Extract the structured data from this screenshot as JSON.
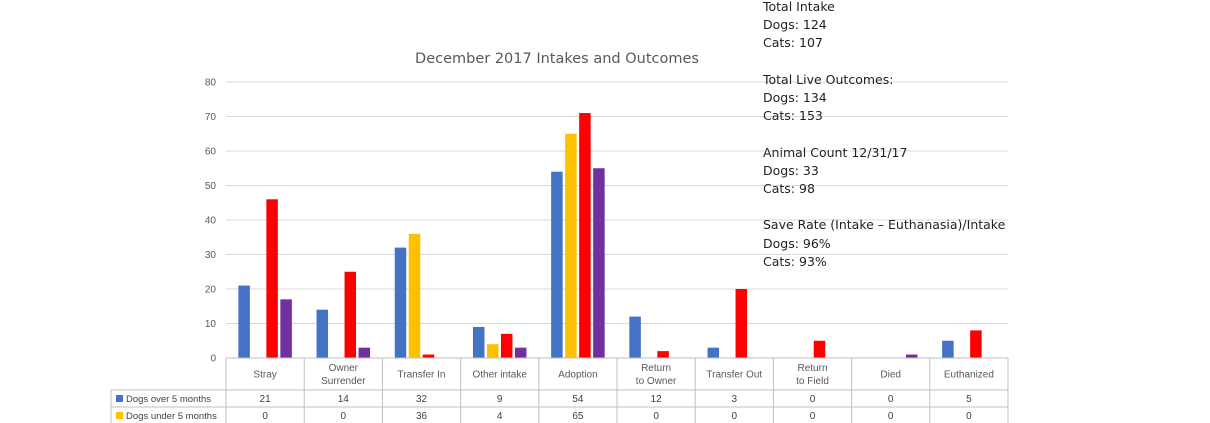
{
  "chart_data": {
    "type": "bar",
    "title": "December 2017 Intakes and Outcomes",
    "categories": [
      "Stray",
      "Owner Surrender",
      "Transfer In",
      "Other intake",
      "Adoption",
      "Return to Owner",
      "Transfer Out",
      "Return to Field",
      "Died",
      "Euthanized"
    ],
    "ylim": [
      0,
      80
    ],
    "yticks": [
      0,
      10,
      20,
      30,
      40,
      50,
      60,
      70,
      80
    ],
    "grid": true,
    "legend": "data-table",
    "series": [
      {
        "name": "Dogs over 5 months",
        "color": "#4472C4",
        "values": [
          21,
          14,
          32,
          9,
          54,
          12,
          3,
          0,
          0,
          5
        ]
      },
      {
        "name": "Dogs under 5 months",
        "color": "#FFC000",
        "values": [
          0,
          0,
          36,
          4,
          65,
          0,
          0,
          0,
          0,
          0
        ]
      },
      {
        "color": "#FF0000",
        "values": [
          46,
          25,
          1,
          7,
          71,
          2,
          20,
          5,
          0,
          8
        ]
      },
      {
        "color": "#7030A0",
        "values": [
          17,
          3,
          0,
          3,
          55,
          0,
          0,
          0,
          1,
          0
        ]
      }
    ],
    "table_rows": [
      {
        "name": "Dogs over 5 months",
        "color": "#4472C4",
        "cells": [
          "21",
          "14",
          "32",
          "9",
          "54",
          "12",
          "3",
          "0",
          "0",
          "5"
        ]
      },
      {
        "name": "Dogs under 5 months",
        "color": "#FFC000",
        "cells": [
          "0",
          "0",
          "36",
          "4",
          "65",
          "0",
          "0",
          "0",
          "0",
          "0"
        ]
      }
    ]
  },
  "notes": [
    {
      "lines": [
        "Total Intake",
        "Dogs: 124",
        "Cats: 107"
      ]
    },
    {
      "lines": [
        "Total Live Outcomes:",
        "Dogs: 134",
        "Cats: 153"
      ]
    },
    {
      "lines": [
        "Animal Count 12/31/17",
        "Dogs: 33",
        "Cats: 98"
      ]
    },
    {
      "lines": [
        "Save Rate (Intake – Euthanasia)/Intake",
        "Dogs: 96%",
        "Cats: 93%"
      ]
    }
  ]
}
